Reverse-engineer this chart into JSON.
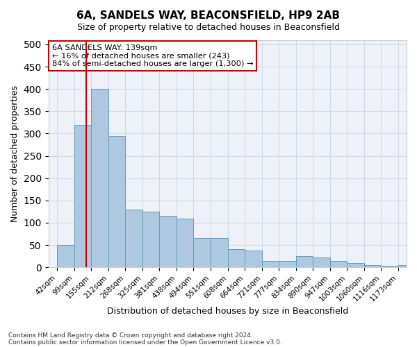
{
  "title": "6A, SANDELS WAY, BEACONSFIELD, HP9 2AB",
  "subtitle": "Size of property relative to detached houses in Beaconsfield",
  "xlabel": "Distribution of detached houses by size in Beaconsfield",
  "ylabel": "Number of detached properties",
  "bar_values": [
    50,
    320,
    400,
    295,
    130,
    125,
    115,
    110,
    65,
    65,
    40,
    38,
    15,
    14,
    25,
    22,
    14,
    10,
    5,
    4,
    5
  ],
  "bin_edges": [
    42,
    99,
    155,
    212,
    268,
    325,
    381,
    438,
    494,
    551,
    608,
    664,
    721,
    777,
    834,
    890,
    947,
    1003,
    1060,
    1116,
    1173,
    1230
  ],
  "tick_labels": [
    "42sqm",
    "99sqm",
    "155sqm",
    "212sqm",
    "268sqm",
    "325sqm",
    "381sqm",
    "438sqm",
    "494sqm",
    "551sqm",
    "608sqm",
    "664sqm",
    "721sqm",
    "777sqm",
    "834sqm",
    "890sqm",
    "947sqm",
    "1003sqm",
    "1060sqm",
    "1116sqm",
    "1173sqm"
  ],
  "bar_color": "#aec8e0",
  "bar_edge_color": "#5f9ec0",
  "grid_color": "#d0d8e8",
  "bg_color": "#eef2f8",
  "vline_x": 139,
  "vline_color": "#cc0000",
  "annotation_text": "6A SANDELS WAY: 139sqm\n← 16% of detached houses are smaller (243)\n84% of semi-detached houses are larger (1,300) →",
  "annotation_box_color": "#ffffff",
  "annotation_box_edge": "#cc0000",
  "footer_line1": "Contains HM Land Registry data © Crown copyright and database right 2024.",
  "footer_line2": "Contains public sector information licensed under the Open Government Licence v3.0.",
  "ylim": [
    0,
    510
  ],
  "yticks": [
    0,
    50,
    100,
    150,
    200,
    250,
    300,
    350,
    400,
    450,
    500
  ]
}
